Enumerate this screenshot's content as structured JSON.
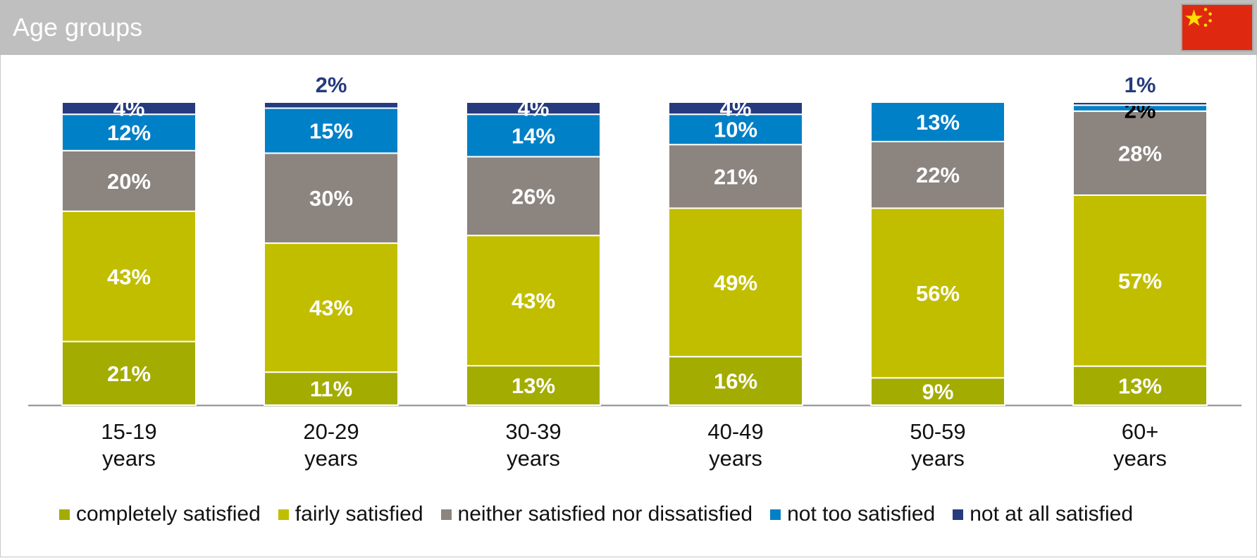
{
  "header": {
    "title": "Age groups",
    "flag_icon": "china-flag-icon"
  },
  "chart_data": {
    "type": "bar",
    "stacked": true,
    "categories": [
      [
        "15-19",
        "years"
      ],
      [
        "20-29",
        "years"
      ],
      [
        "30-39",
        "years"
      ],
      [
        "40-49",
        "years"
      ],
      [
        "50-59",
        "years"
      ],
      [
        "60+",
        "years"
      ]
    ],
    "series": [
      {
        "name": "completely satisfied",
        "color": "#a3ac00",
        "values": [
          21,
          11,
          13,
          16,
          9,
          13
        ],
        "labels": [
          "21%",
          "11%",
          "13%",
          "16%",
          "9%",
          "13%"
        ]
      },
      {
        "name": "fairly satisfied",
        "color": "#c1be00",
        "values": [
          43,
          43,
          43,
          49,
          56,
          57
        ],
        "labels": [
          "43%",
          "43%",
          "43%",
          "49%",
          "56%",
          "57%"
        ]
      },
      {
        "name": "neither satisfied nor dissatisfied",
        "color": "#8c847f",
        "values": [
          20,
          30,
          26,
          21,
          22,
          28
        ],
        "labels": [
          "20%",
          "30%",
          "26%",
          "21%",
          "22%",
          "28%"
        ]
      },
      {
        "name": "not too satisfied",
        "color": "#0080c6",
        "values": [
          12,
          15,
          14,
          10,
          13,
          2
        ],
        "labels": [
          "12%",
          "15%",
          "14%",
          "10%",
          "13%",
          "2%"
        ]
      },
      {
        "name": "not at all satisfied",
        "color": "#263a7e",
        "values": [
          4,
          2,
          4,
          4,
          0,
          1
        ],
        "labels": [
          "4%",
          "2%",
          "4%",
          "4%",
          "",
          "1%"
        ]
      }
    ],
    "ylim": [
      0,
      100
    ],
    "grid": false,
    "legend_position": "bottom"
  }
}
